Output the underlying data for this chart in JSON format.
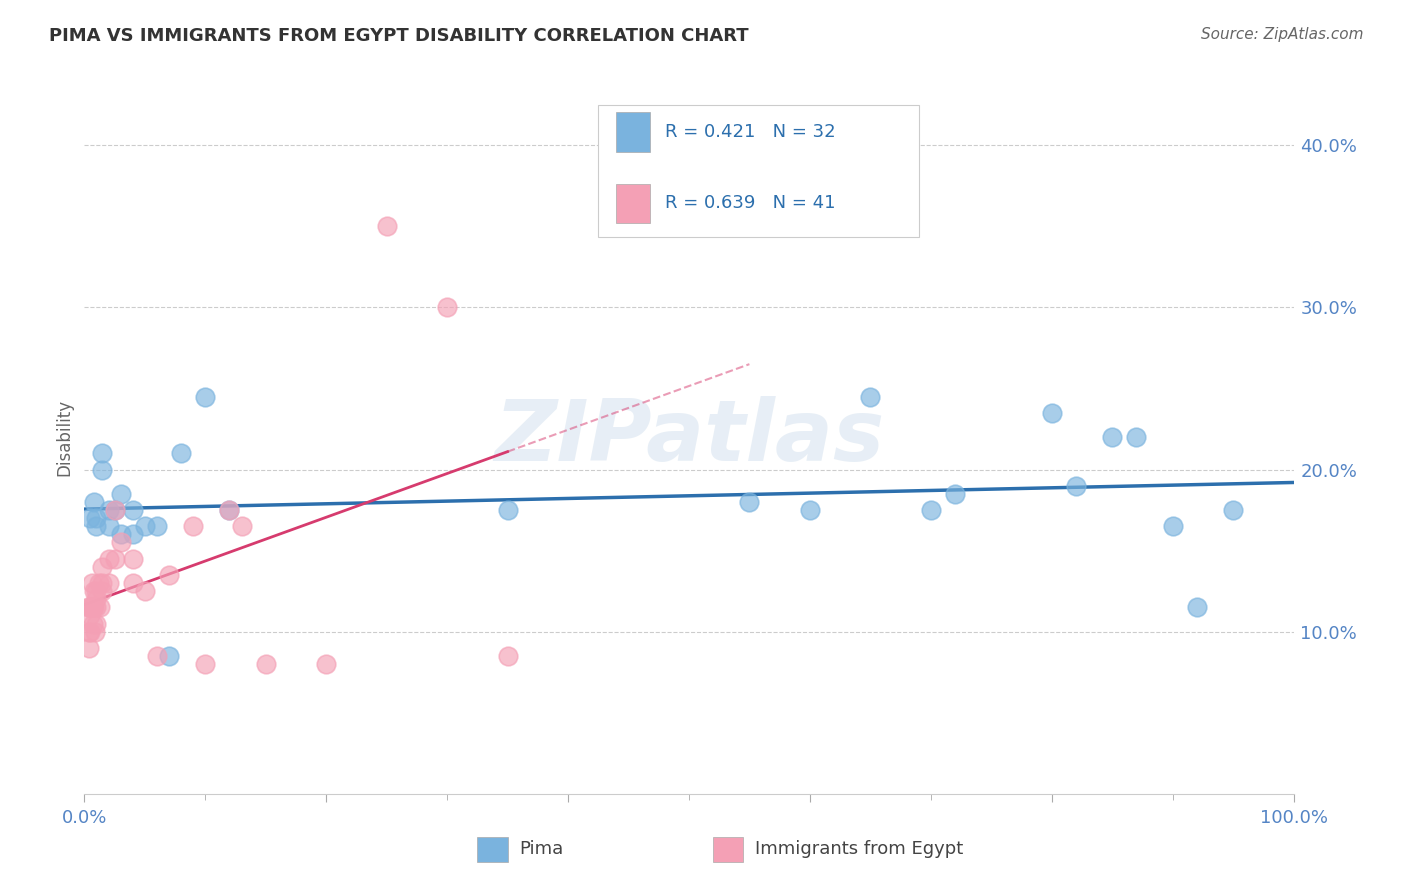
{
  "title": "PIMA VS IMMIGRANTS FROM EGYPT DISABILITY CORRELATION CHART",
  "source": "Source: ZipAtlas.com",
  "ylabel": "Disability",
  "xlim": [
    0,
    1.0
  ],
  "ylim": [
    0,
    0.44
  ],
  "pima_color": "#7ab3de",
  "egypt_color": "#f4a0b5",
  "pima_line_color": "#2c6fad",
  "egypt_line_color": "#d63b6e",
  "R_pima": 0.421,
  "N_pima": 32,
  "R_egypt": 0.639,
  "N_egypt": 41,
  "pima_x": [
    0.005,
    0.008,
    0.01,
    0.01,
    0.015,
    0.015,
    0.02,
    0.02,
    0.025,
    0.03,
    0.03,
    0.04,
    0.04,
    0.05,
    0.06,
    0.07,
    0.08,
    0.1,
    0.12,
    0.35,
    0.55,
    0.6,
    0.65,
    0.7,
    0.72,
    0.8,
    0.82,
    0.85,
    0.87,
    0.9,
    0.92,
    0.95
  ],
  "pima_y": [
    0.17,
    0.18,
    0.17,
    0.165,
    0.21,
    0.2,
    0.175,
    0.165,
    0.175,
    0.185,
    0.16,
    0.175,
    0.16,
    0.165,
    0.165,
    0.085,
    0.21,
    0.245,
    0.175,
    0.175,
    0.18,
    0.175,
    0.245,
    0.175,
    0.185,
    0.235,
    0.19,
    0.22,
    0.22,
    0.165,
    0.115,
    0.175
  ],
  "egypt_x": [
    0.003,
    0.004,
    0.004,
    0.005,
    0.005,
    0.005,
    0.006,
    0.006,
    0.007,
    0.007,
    0.008,
    0.008,
    0.009,
    0.01,
    0.01,
    0.01,
    0.01,
    0.012,
    0.013,
    0.015,
    0.015,
    0.015,
    0.02,
    0.02,
    0.025,
    0.025,
    0.03,
    0.04,
    0.04,
    0.05,
    0.06,
    0.07,
    0.09,
    0.1,
    0.12,
    0.13,
    0.15,
    0.2,
    0.25,
    0.3,
    0.35
  ],
  "egypt_y": [
    0.115,
    0.1,
    0.09,
    0.115,
    0.11,
    0.1,
    0.13,
    0.115,
    0.115,
    0.105,
    0.125,
    0.115,
    0.1,
    0.125,
    0.12,
    0.115,
    0.105,
    0.13,
    0.115,
    0.14,
    0.13,
    0.125,
    0.13,
    0.145,
    0.145,
    0.175,
    0.155,
    0.145,
    0.13,
    0.125,
    0.085,
    0.135,
    0.165,
    0.08,
    0.175,
    0.165,
    0.08,
    0.08,
    0.35,
    0.3,
    0.085
  ],
  "watermark": "ZIPatlas",
  "background_color": "#ffffff",
  "grid_color": "#cccccc"
}
